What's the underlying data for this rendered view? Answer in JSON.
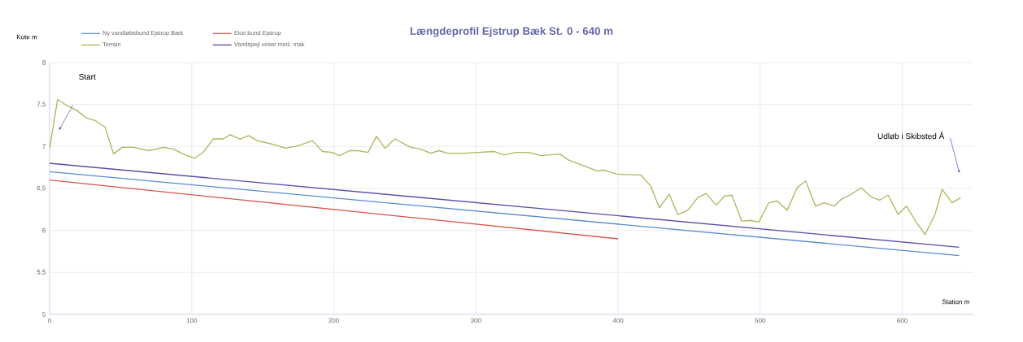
{
  "chart_data": {
    "type": "line",
    "title": "Længdeprofil  Ejstrup Bæk St. 0 - 640 m",
    "xlabel": "Station m",
    "ylabel": "Kote m",
    "xlim": [
      0,
      650
    ],
    "xticks": [
      0,
      100,
      200,
      300,
      400,
      500,
      600
    ],
    "ylim": [
      5,
      8
    ],
    "yticks": [
      5,
      {
        "value": 5.5,
        "label": "5,5"
      },
      6,
      {
        "value": 6.5,
        "label": "6,5"
      },
      7,
      {
        "value": 7.5,
        "label": "7,5"
      },
      8
    ],
    "grid": true,
    "legend": "top left",
    "marker": "none",
    "line_style": "solid",
    "series": [
      {
        "name": "Ny vandløbsbund Ejstrup Bæk",
        "color": "#5b8bd0",
        "x": [
          0,
          640
        ],
        "values": [
          6.7,
          5.7
        ]
      },
      {
        "name": "Ekst bund Ejstrup",
        "color": "#d9534f",
        "x": [
          0,
          400
        ],
        "values": [
          6.6,
          5.9
        ]
      },
      {
        "name": "Terrain",
        "color": "#a9b95e",
        "x": [
          0,
          5.6,
          12,
          19,
          26,
          32,
          39,
          45,
          51,
          59,
          70,
          80,
          87,
          94,
          102,
          108,
          115,
          122,
          127,
          134,
          140,
          146,
          156,
          166,
          175,
          185,
          192,
          199,
          204,
          211,
          217,
          224,
          230,
          236,
          243,
          254,
          261,
          268,
          274,
          280,
          292,
          301,
          313,
          320,
          328,
          337,
          346,
          359,
          365,
          376,
          385,
          390,
          399,
          416,
          423,
          429,
          436,
          442,
          449,
          456,
          462,
          469,
          475,
          480,
          487,
          493,
          499,
          506,
          512,
          519,
          526,
          532,
          539,
          545,
          552,
          557,
          564,
          571,
          578,
          584,
          590,
          597,
          603,
          609,
          616,
          623,
          628,
          635,
          641
        ],
        "values": [
          6.97,
          7.56,
          7.49,
          7.43,
          7.34,
          7.31,
          7.23,
          6.91,
          6.99,
          6.99,
          6.95,
          6.99,
          6.97,
          6.91,
          6.86,
          6.93,
          7.09,
          7.09,
          7.14,
          7.09,
          7.13,
          7.07,
          7.03,
          6.98,
          7.01,
          7.07,
          6.94,
          6.93,
          6.89,
          6.95,
          6.95,
          6.93,
          7.12,
          6.98,
          7.09,
          6.99,
          6.97,
          6.92,
          6.95,
          6.92,
          6.92,
          6.93,
          6.94,
          6.9,
          6.93,
          6.93,
          6.89,
          6.91,
          6.84,
          6.77,
          6.71,
          6.72,
          6.67,
          6.66,
          6.53,
          6.27,
          6.43,
          6.19,
          6.24,
          6.39,
          6.44,
          6.3,
          6.41,
          6.42,
          6.11,
          6.12,
          6.1,
          6.33,
          6.35,
          6.24,
          6.51,
          6.59,
          6.29,
          6.33,
          6.29,
          6.37,
          6.43,
          6.51,
          6.4,
          6.36,
          6.42,
          6.19,
          6.29,
          6.12,
          5.95,
          6.19,
          6.49,
          6.33,
          6.39
        ]
      },
      {
        "name": "Vandspejl vinter med. mak",
        "color": "#5a4fa8",
        "x": [
          0,
          640
        ],
        "values": [
          6.8,
          5.8
        ]
      }
    ],
    "annotations": [
      "Start",
      "Udløb i Skibsted Å"
    ]
  }
}
